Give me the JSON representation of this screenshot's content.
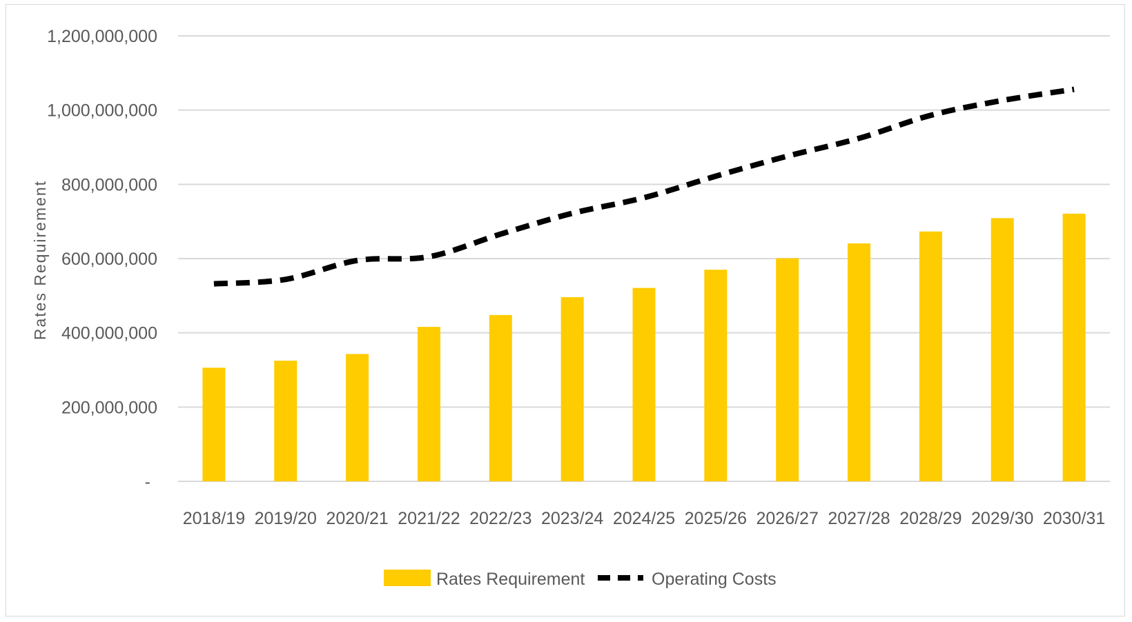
{
  "chart_data": {
    "type": "bar",
    "title": "",
    "xlabel": "",
    "ylabel": "Rates Requirement",
    "ylim": [
      0,
      1200000000
    ],
    "y_ticks": [
      0,
      200000000,
      400000000,
      600000000,
      800000000,
      1000000000,
      1200000000
    ],
    "y_tick_labels": [
      "-",
      "200,000,000",
      "400,000,000",
      "600,000,000",
      "800,000,000",
      "1,000,000,000",
      "1,200,000,000"
    ],
    "grid": true,
    "legend_position": "bottom-center",
    "categories": [
      "2018/19",
      "2019/20",
      "2020/21",
      "2021/22",
      "2022/23",
      "2023/24",
      "2024/25",
      "2025/26",
      "2026/27",
      "2027/28",
      "2028/29",
      "2029/30",
      "2030/31"
    ],
    "series": [
      {
        "name": "Rates Requirement",
        "type": "bar",
        "color": "#FFCC00",
        "values": [
          306000000,
          325000000,
          343000000,
          416000000,
          448000000,
          496000000,
          521000000,
          570000000,
          601000000,
          641000000,
          673000000,
          709000000,
          721000000
        ]
      },
      {
        "name": "Operating Costs",
        "type": "line",
        "style": "dashed",
        "color": "#000000",
        "values": [
          532000000,
          544000000,
          595000000,
          605000000,
          666000000,
          722000000,
          764000000,
          822000000,
          876000000,
          924000000,
          986000000,
          1026000000,
          1056000000
        ]
      }
    ]
  }
}
